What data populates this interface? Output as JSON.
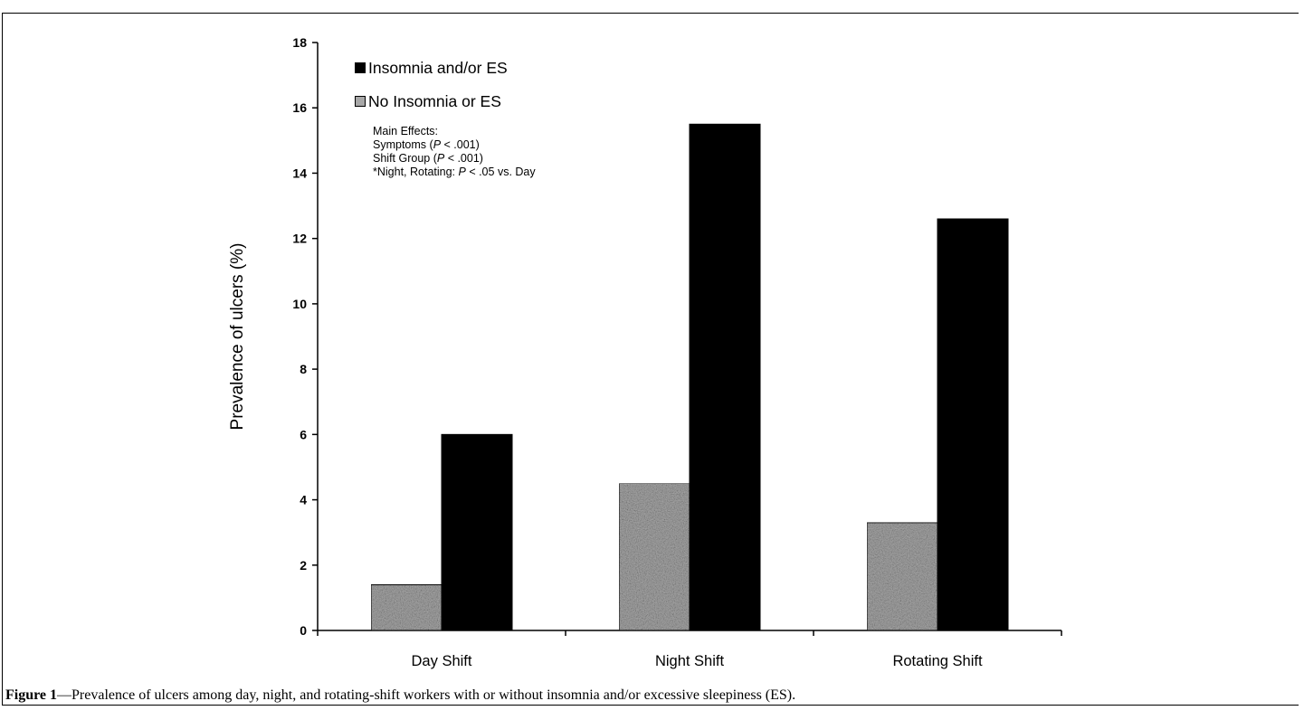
{
  "chart_data": {
    "type": "bar",
    "title": "",
    "xlabel": "",
    "ylabel": "Prevalence of ulcers (%)",
    "ylim": [
      0,
      18
    ],
    "yticks": [
      "0",
      "2",
      "4",
      "6",
      "8",
      "10",
      "12",
      "14",
      "16",
      "18"
    ],
    "categories": [
      "Day Shift",
      "Night Shift",
      "Rotating Shift"
    ],
    "series": [
      {
        "name": "No Insomnia or ES",
        "values": [
          1.4,
          4.5,
          3.3
        ],
        "color": "#a8a8a8"
      },
      {
        "name": "Insomnia and/or ES",
        "values": [
          6.0,
          15.5,
          12.6
        ],
        "color": "#000000"
      }
    ],
    "legend_position": "top-left",
    "grid": false
  },
  "legend": {
    "items": [
      {
        "label": "Insomnia and/or ES",
        "color": "#000000"
      },
      {
        "label": "No Insomnia or ES",
        "color": "#a8a8a8"
      }
    ]
  },
  "annotation": {
    "heading": "Main Effects:",
    "line1_pre": "Symptoms (",
    "line1_p": "P",
    "line1_post": " < .001)",
    "line2_pre": "Shift Group (",
    "line2_p": "P",
    "line2_post": " < .001)",
    "line3_pre": "*Night, Rotating: ",
    "line3_p": "P",
    "line3_post": " < .05 vs. Day"
  },
  "caption": {
    "label": "Figure 1",
    "text": "—Prevalence of ulcers among day, night, and rotating-shift workers with or without insomnia and/or excessive sleepiness (ES)."
  }
}
